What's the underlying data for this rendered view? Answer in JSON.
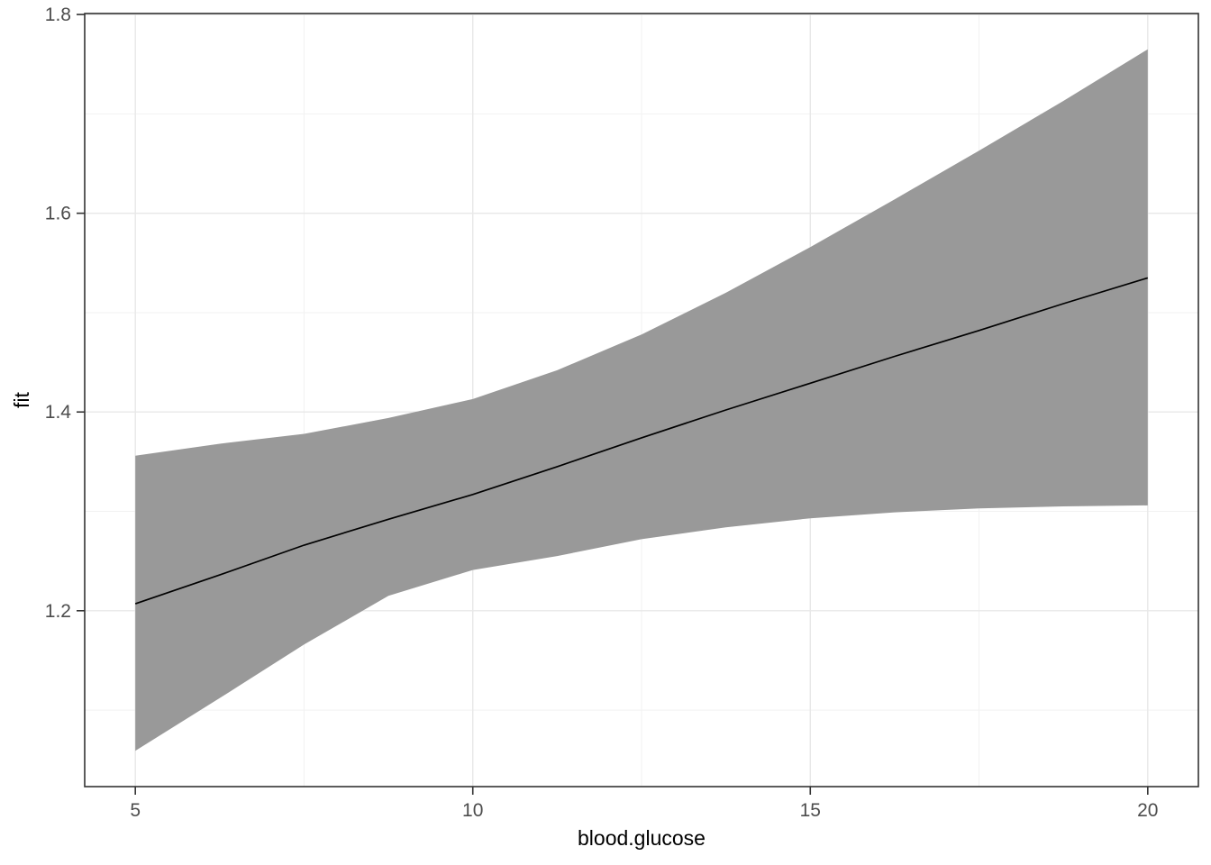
{
  "chart_data": {
    "type": "line",
    "title": "",
    "xlabel": "blood.glucose",
    "ylabel": "fit",
    "x": [
      5,
      6.25,
      7.5,
      8.75,
      10,
      11.25,
      12.5,
      13.75,
      15,
      16.25,
      17.5,
      18.75,
      20
    ],
    "series": [
      {
        "name": "fit",
        "role": "line",
        "values": [
          1.207,
          1.236,
          1.266,
          1.292,
          1.317,
          1.345,
          1.374,
          1.402,
          1.429,
          1.456,
          1.482,
          1.509,
          1.535
        ]
      },
      {
        "name": "ci_upper",
        "role": "ribbon-upper",
        "values": [
          1.356,
          1.368,
          1.378,
          1.394,
          1.413,
          1.442,
          1.478,
          1.52,
          1.566,
          1.614,
          1.663,
          1.713,
          1.765
        ]
      },
      {
        "name": "ci_lower",
        "role": "ribbon-lower",
        "values": [
          1.059,
          1.112,
          1.166,
          1.215,
          1.241,
          1.255,
          1.272,
          1.284,
          1.293,
          1.299,
          1.303,
          1.305,
          1.306
        ]
      }
    ],
    "xlim": [
      4.25,
      20.75
    ],
    "ylim": [
      1.023,
      1.801
    ],
    "x_ticks": [
      5,
      10,
      15,
      20
    ],
    "x_tick_labels": [
      "5",
      "10",
      "15",
      "20"
    ],
    "x_minor_ticks": [
      7.5,
      12.5,
      17.5
    ],
    "y_ticks": [
      1.2,
      1.4,
      1.6,
      1.8
    ],
    "y_tick_labels": [
      "1.2",
      "1.4",
      "1.6",
      "1.8"
    ],
    "y_minor_ticks": [
      1.1,
      1.3,
      1.5,
      1.7
    ],
    "grid": "major+minor",
    "legend": "none",
    "style": {
      "ribbon_fill": "#999999",
      "line_color": "#000000",
      "panel_border": "#333333",
      "grid_major": "#e8e8e8",
      "grid_minor": "#f2f2f2",
      "tick_color": "#333333",
      "tick_label_color": "#4d4d4d",
      "axis_title_color": "#000000",
      "background": "#ffffff"
    }
  }
}
